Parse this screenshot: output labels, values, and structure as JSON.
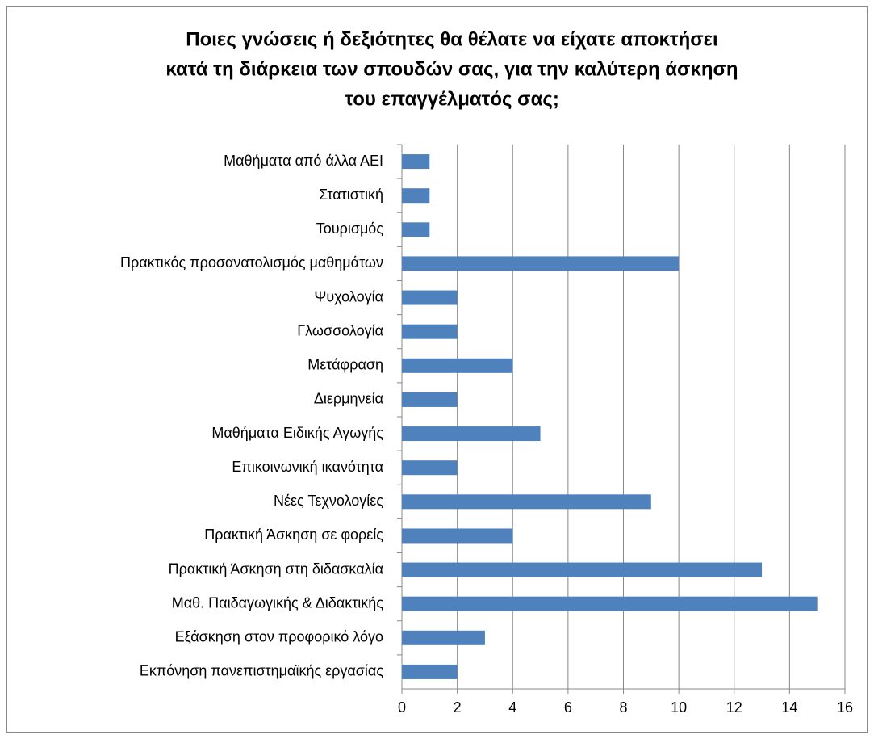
{
  "chart_data": {
    "type": "barh",
    "title": [
      "Ποιες γνώσεις ή δεξιότητες θα θέλατε να είχατε αποκτήσει",
      "κατά τη διάρκεια των σπουδών σας, για την καλύτερη άσκηση",
      "του επαγγέλματός σας;"
    ],
    "categories": [
      "Μαθήματα από άλλα ΑΕΙ",
      "Στατιστική",
      "Τουρισμός",
      "Πρακτικός προσανατολισμός μαθημάτων",
      "Ψυχολογία",
      "Γλωσσολογία",
      "Μετάφραση",
      "Διερμηνεία",
      "Μαθήματα Ειδικής Αγωγής",
      "Επικοινωνική ικανότητα",
      "Νέες Τεχνολογίες",
      "Πρακτική Άσκηση σε φορείς",
      "Πρακτική Άσκηση στη διδασκαλία",
      "Μαθ. Παιδαγωγικής & Διδακτικής",
      "Εξάσκηση στον προφορικό λόγο",
      "Εκπόνηση πανεπιστημαϊκής εργασίας"
    ],
    "values": [
      1,
      1,
      1,
      10,
      2,
      2,
      4,
      2,
      5,
      2,
      9,
      4,
      13,
      15,
      3,
      2
    ],
    "color": "#4f81bd",
    "xlim": [
      0,
      16
    ],
    "xticks": [
      0,
      2,
      4,
      6,
      8,
      10,
      12,
      14,
      16
    ],
    "grid": true
  }
}
